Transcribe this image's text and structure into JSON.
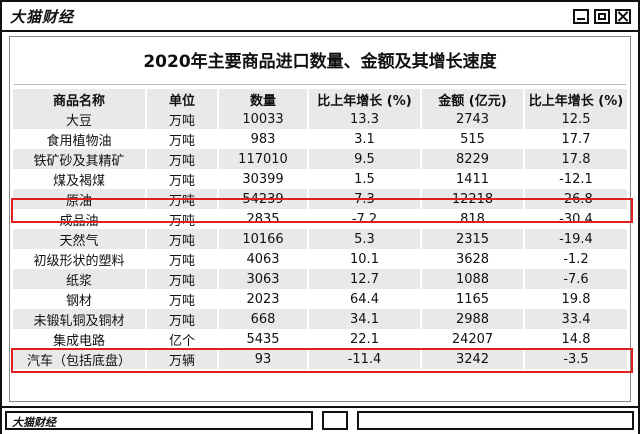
{
  "window": {
    "app_title": "大猫财经",
    "footer_title": "大猫财经"
  },
  "document": {
    "title": "2020年主要商品进口数量、金额及其增长速度",
    "headers": [
      "商品名称",
      "单位",
      "数量",
      "比上年增长 (%)",
      "金额 (亿元)",
      "比上年增长 (%)"
    ],
    "rows": [
      [
        "大豆",
        "万吨",
        "10033",
        "13.3",
        "2743",
        "12.5"
      ],
      [
        "食用植物油",
        "万吨",
        "983",
        "3.1",
        "515",
        "17.7"
      ],
      [
        "铁矿砂及其精矿",
        "万吨",
        "117010",
        "9.5",
        "8229",
        "17.8"
      ],
      [
        "煤及褐煤",
        "万吨",
        "30399",
        "1.5",
        "1411",
        "-12.1"
      ],
      [
        "原油",
        "万吨",
        "54239",
        "7.3",
        "12218",
        "-26.8"
      ],
      [
        "成品油",
        "万吨",
        "2835",
        "-7.2",
        "818",
        "-30.4"
      ],
      [
        "天然气",
        "万吨",
        "10166",
        "5.3",
        "2315",
        "-19.4"
      ],
      [
        "初级形状的塑料",
        "万吨",
        "4063",
        "10.1",
        "3628",
        "-1.2"
      ],
      [
        "纸浆",
        "万吨",
        "3063",
        "12.7",
        "1088",
        "-7.6"
      ],
      [
        "钢材",
        "万吨",
        "2023",
        "64.4",
        "1165",
        "19.8"
      ],
      [
        "未锻轧铜及铜材",
        "万吨",
        "668",
        "34.1",
        "2988",
        "33.4"
      ],
      [
        "集成电路",
        "亿个",
        "5435",
        "22.1",
        "24207",
        "14.8"
      ],
      [
        "汽车（包括底盘）",
        "万辆",
        "93",
        "-11.4",
        "3242",
        "-3.5"
      ]
    ]
  },
  "colors": {
    "highlight": "#e02020",
    "stripe": "#e9e9e9",
    "border": "#111111"
  }
}
